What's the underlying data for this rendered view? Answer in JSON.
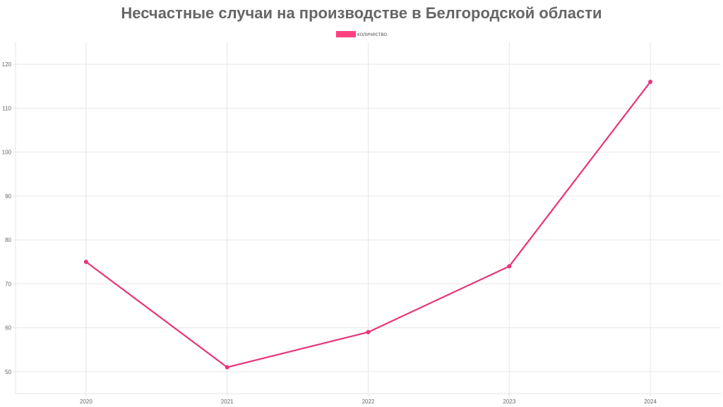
{
  "chart_data": {
    "type": "line",
    "title": "Несчастные случаи на производстве в Белгородской области",
    "xlabel": "",
    "ylabel": "",
    "categories": [
      "2020",
      "2021",
      "2022",
      "2023",
      "2024"
    ],
    "series": [
      {
        "name": "количество",
        "values": [
          75,
          51,
          59,
          74,
          116
        ],
        "color": "#e8347a"
      }
    ],
    "ylim": [
      45,
      125
    ],
    "yticks": [
      50,
      60,
      70,
      80,
      90,
      100,
      110,
      120
    ],
    "grid": true,
    "legend_position": "top-center"
  },
  "colors": {
    "legend_swatch": "#ff4081",
    "line": "#e8347a",
    "grid": "#e6e6e6",
    "text": "#666666"
  }
}
